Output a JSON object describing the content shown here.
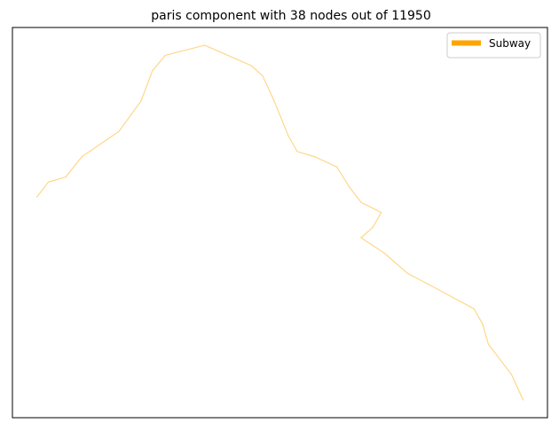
{
  "chart_data": {
    "type": "line",
    "title": "paris component with 38 nodes out of 11950",
    "xlabel": "",
    "ylabel": "",
    "axes_ticks": false,
    "grid": false,
    "legend_position": "top-right",
    "series": [
      {
        "name": "Subway",
        "legend_color": "#ffa500",
        "line_color": "#ffd47f",
        "points": [
          [
            2.0,
            48.88
          ],
          [
            2.02,
            48.883
          ],
          [
            2.05,
            48.884
          ],
          [
            2.078,
            48.888
          ],
          [
            2.142,
            48.893
          ],
          [
            2.18,
            48.899
          ],
          [
            2.2,
            48.905
          ],
          [
            2.222,
            48.908
          ],
          [
            2.29,
            48.91
          ],
          [
            2.37,
            48.906
          ],
          [
            2.39,
            48.904
          ],
          [
            2.41,
            48.899
          ],
          [
            2.435,
            48.892
          ],
          [
            2.45,
            48.889
          ],
          [
            2.48,
            48.888
          ],
          [
            2.518,
            48.886
          ],
          [
            2.54,
            48.882
          ],
          [
            2.56,
            48.879
          ],
          [
            2.595,
            48.877
          ],
          [
            2.58,
            48.874
          ],
          [
            2.56,
            48.872
          ],
          [
            2.6,
            48.869
          ],
          [
            2.64,
            48.865
          ],
          [
            2.69,
            48.862
          ],
          [
            2.755,
            48.858
          ],
          [
            2.77,
            48.855
          ],
          [
            2.78,
            48.851
          ],
          [
            2.82,
            48.845
          ],
          [
            2.84,
            48.84
          ]
        ]
      }
    ]
  }
}
